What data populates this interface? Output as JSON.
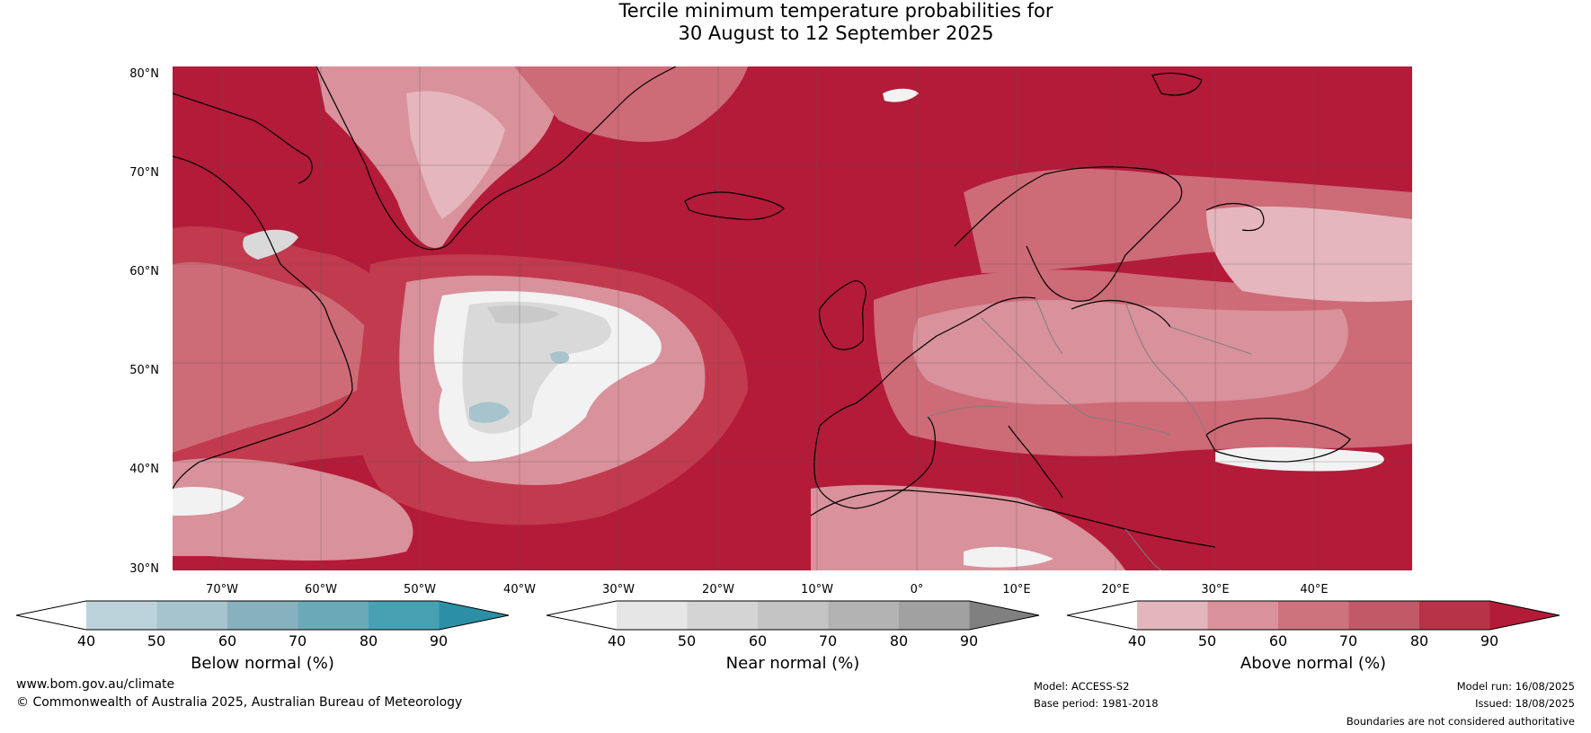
{
  "title": {
    "line1": "Tercile minimum temperature probabilities for",
    "line2": "30 August to 12 September 2025"
  },
  "map": {
    "lat_labels": [
      "80°N",
      "70°N",
      "60°N",
      "50°N",
      "40°N",
      "30°N"
    ],
    "lon_labels": [
      "70°W",
      "60°W",
      "50°W",
      "40°W",
      "30°W",
      "20°W",
      "10°W",
      "0°",
      "10°E",
      "20°E",
      "30°E",
      "40°E"
    ],
    "colors": {
      "above_90": "#b31b39",
      "above_80": "#c13a4e",
      "above_70": "#cd6b77",
      "above_60": "#d9919b",
      "above_50": "#e5b6bd",
      "near_40": "#f2f2f2",
      "near_50": "#d9d9d9",
      "near_60": "#c9c9c9",
      "below_50": "#a7c4cc",
      "coastline": "#000000",
      "borders": "#7f7f7f",
      "grid": "#555555"
    }
  },
  "colorbars": [
    {
      "label": "Below normal (%)",
      "ticks": [
        "40",
        "50",
        "60",
        "70",
        "80",
        "90"
      ],
      "colors": [
        "#bdd3db",
        "#a6c4cd",
        "#88b1bf",
        "#6aa9b8",
        "#47a1b3",
        "#2b8fa6"
      ]
    },
    {
      "label": "Near normal (%)",
      "ticks": [
        "40",
        "50",
        "60",
        "70",
        "80",
        "90"
      ],
      "colors": [
        "#e6e6e6",
        "#d4d4d4",
        "#c4c4c4",
        "#b3b3b3",
        "#a1a1a1",
        "#808080"
      ]
    },
    {
      "label": "Above normal (%)",
      "ticks": [
        "40",
        "50",
        "60",
        "70",
        "80",
        "90"
      ],
      "colors": [
        "#e3b6bd",
        "#d9919b",
        "#cd737e",
        "#c15a66",
        "#b73346",
        "#b31b39"
      ]
    }
  ],
  "footer": {
    "website": "www.bom.gov.au/climate",
    "copyright": "© Commonwealth of Australia 2025, Australian Bureau of Meteorology",
    "model": "Model: ACCESS-S2",
    "base_period": "Base period: 1981-2018",
    "model_run": "Model run: 16/08/2025",
    "issued": "Issued: 18/08/2025",
    "disclaimer": "Boundaries are not considered authoritative"
  }
}
